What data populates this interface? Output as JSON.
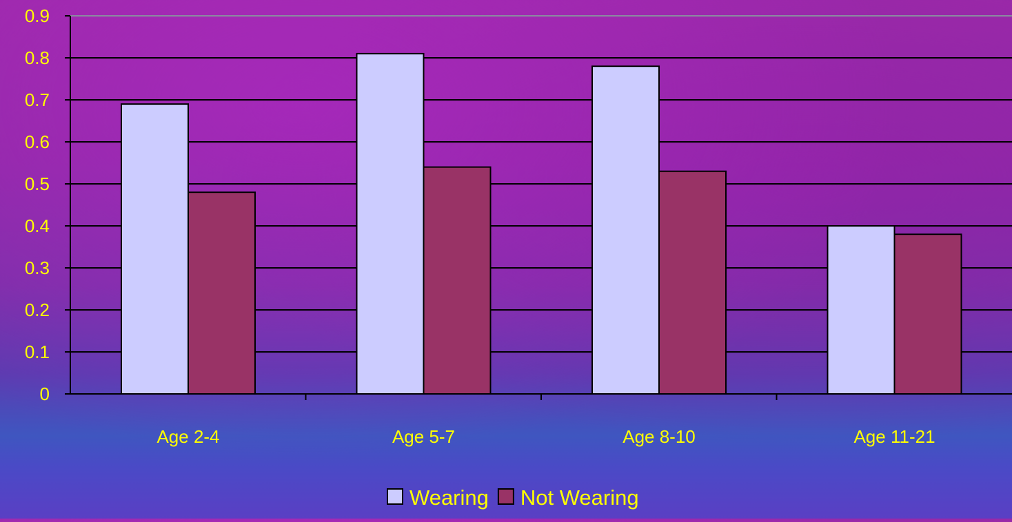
{
  "chart_data": {
    "type": "bar",
    "categories": [
      "Age 2-4",
      "Age 5-7",
      "Age 8-10",
      "Age 11-21"
    ],
    "series": [
      {
        "name": "Wearing",
        "values": [
          0.69,
          0.81,
          0.78,
          0.4
        ],
        "color": "#ccccff"
      },
      {
        "name": "Not Wearing",
        "values": [
          0.48,
          0.54,
          0.53,
          0.38
        ],
        "color": "#993366"
      }
    ],
    "y_ticks": [
      "0",
      "0.1",
      "0.2",
      "0.3",
      "0.4",
      "0.5",
      "0.6",
      "0.7",
      "0.8",
      "0.9"
    ],
    "ylim": [
      0,
      0.9
    ],
    "grid": true,
    "legend_position": "bottom-center",
    "colors": {
      "text": "#ffff00",
      "gridline": "#000000",
      "bar_outline": "#000000"
    }
  }
}
